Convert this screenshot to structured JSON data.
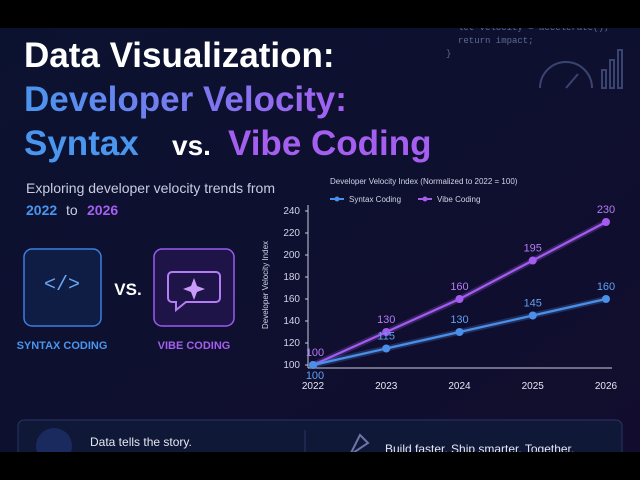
{
  "code": [
    "let velocity = accelerate();",
    "return impact;",
    "}"
  ],
  "header": {
    "title_line1": "Data Visualization:",
    "title_line2": "Developer Velocity:",
    "title_syntax": "Syntax",
    "title_vs": "vs.",
    "title_vibe": "Vibe Coding",
    "subtitle": "Exploring developer velocity trends from",
    "year_start": "2022",
    "year_to": "to",
    "year_end": "2026"
  },
  "comparison": {
    "syntax_icon": "</>",
    "syntax_label": "SYNTAX CODING",
    "vs": "VS.",
    "vibe_label": "VIBE CODING"
  },
  "chart_data": {
    "type": "line",
    "title": "Developer Velocity Index (Normalized to 2022 = 100)",
    "y_label": "Developer Velocity Index",
    "categories": [
      "2022",
      "2023",
      "2024",
      "2025",
      "2026"
    ],
    "series": [
      {
        "name": "Syntax Coding",
        "color": "#4a8fe8",
        "values": [
          100,
          115,
          130,
          145,
          160
        ]
      },
      {
        "name": "Vibe Coding",
        "color": "#a45cf0",
        "values": [
          100,
          130,
          160,
          195,
          230
        ]
      }
    ],
    "ylim": [
      100,
      240
    ],
    "yticks": [
      100,
      120,
      140,
      160,
      180,
      200,
      220,
      240
    ],
    "grid": false,
    "legend": "top-left"
  },
  "footer": {
    "left_title": "Data tells the story.",
    "right": "Build faster. Ship smarter. Together."
  }
}
